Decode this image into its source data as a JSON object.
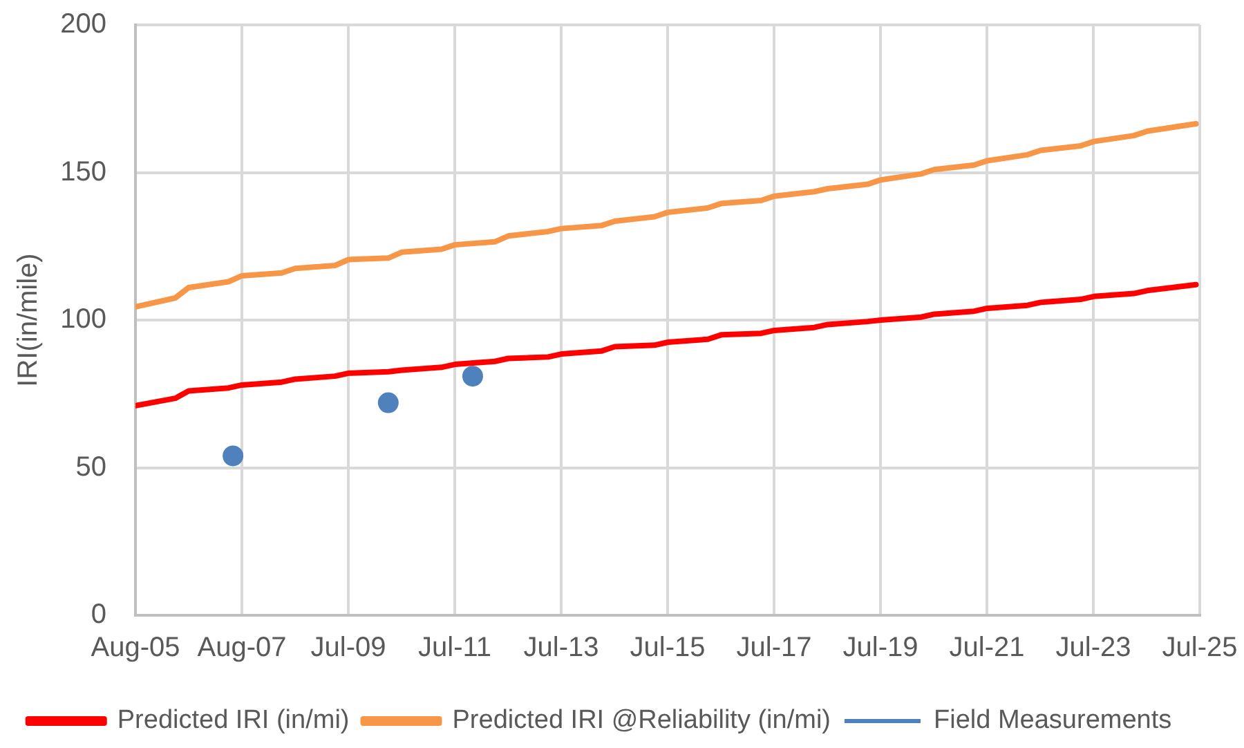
{
  "chart_data": {
    "type": "line",
    "ylabel": "IRI(in/mile)",
    "x": [
      "2005-08",
      "2006-05",
      "2006-08",
      "2007-05",
      "2007-08",
      "2008-05",
      "2008-08",
      "2009-05",
      "2009-08",
      "2010-05",
      "2010-08",
      "2011-05",
      "2011-08",
      "2012-05",
      "2012-08",
      "2013-05",
      "2013-08",
      "2014-05",
      "2014-08",
      "2015-05",
      "2015-08",
      "2016-05",
      "2016-08",
      "2017-05",
      "2017-08",
      "2018-05",
      "2018-08",
      "2019-05",
      "2019-08",
      "2020-05",
      "2020-08",
      "2021-05",
      "2021-08",
      "2022-05",
      "2022-08",
      "2023-05",
      "2023-08",
      "2024-05",
      "2024-08",
      "2025-07"
    ],
    "xlim": [
      "2005-08-01",
      "2025-07-27"
    ],
    "xticks": [
      {
        "value": "2005-08-01",
        "label": "Aug-05"
      },
      {
        "value": "2007-08-01",
        "label": "Aug-07"
      },
      {
        "value": "2009-07-31",
        "label": "Jul-09"
      },
      {
        "value": "2011-07-31",
        "label": "Jul-11"
      },
      {
        "value": "2013-07-30",
        "label": "Jul-13"
      },
      {
        "value": "2015-07-30",
        "label": "Jul-15"
      },
      {
        "value": "2017-07-29",
        "label": "Jul-17"
      },
      {
        "value": "2019-07-29",
        "label": "Jul-19"
      },
      {
        "value": "2021-07-28",
        "label": "Jul-21"
      },
      {
        "value": "2023-07-28",
        "label": "Jul-23"
      },
      {
        "value": "2025-07-27",
        "label": "Jul-25"
      }
    ],
    "ylim": [
      0,
      200
    ],
    "yticks": [
      0,
      50,
      100,
      150,
      200
    ],
    "grid": true,
    "legend": "bottom",
    "series": [
      {
        "name": "Predicted IRI (in/mi)",
        "color": "#ff0000",
        "values": [
          71,
          73.5,
          76,
          77,
          78,
          79,
          80,
          81,
          82,
          82.5,
          83,
          84,
          85,
          86,
          87,
          87.5,
          88.5,
          89.5,
          91,
          91.5,
          92.5,
          93.5,
          95,
          95.5,
          96.5,
          97.5,
          98.5,
          99.5,
          100,
          101,
          102,
          103,
          104,
          105,
          106,
          107,
          108,
          109,
          110,
          112
        ]
      },
      {
        "name": "Predicted IRI @Reliability (in/mi)",
        "color": "#f79646",
        "values": [
          104.5,
          107.5,
          111,
          113,
          115,
          116,
          117.5,
          118.5,
          120.5,
          121,
          123,
          124,
          125.5,
          126.5,
          128.5,
          130,
          131,
          132,
          133.5,
          135,
          136.5,
          138,
          139.5,
          140.5,
          142,
          143.5,
          144.5,
          146,
          147.5,
          149.5,
          151,
          152.5,
          154,
          156,
          157.5,
          159,
          160.5,
          162.5,
          164,
          166.5
        ]
      },
      {
        "name": "Field Measurements",
        "type": "scatter",
        "color": "#4f81bd",
        "marker": "circle",
        "x": [
          "2007-06",
          "2010-05",
          "2011-12"
        ],
        "values": [
          54,
          72,
          81
        ]
      }
    ]
  }
}
